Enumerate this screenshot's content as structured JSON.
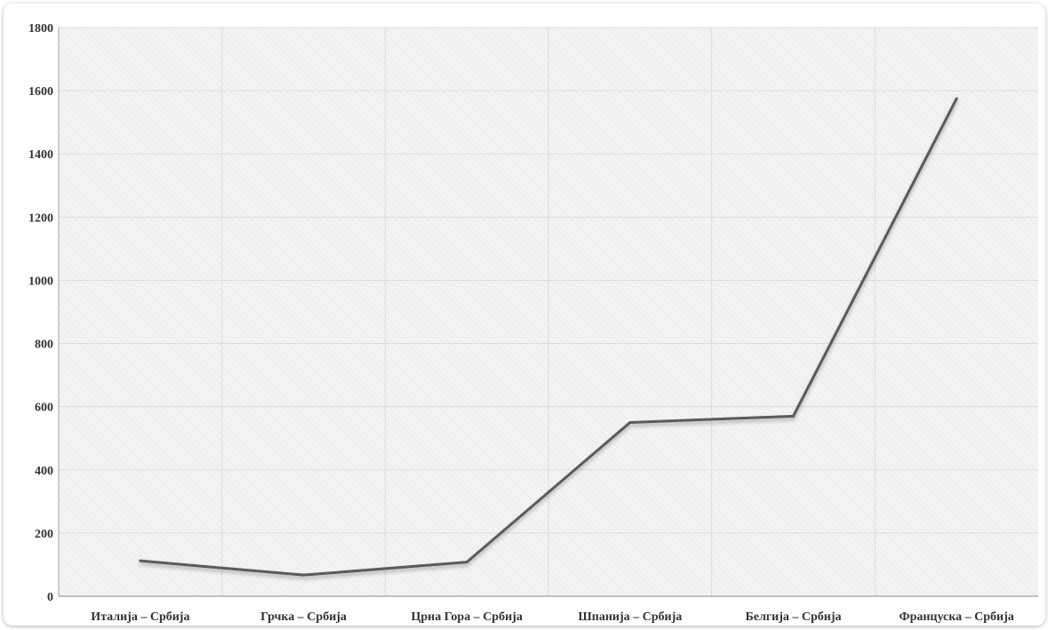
{
  "chart_data": {
    "type": "line",
    "title": "",
    "xlabel": "",
    "ylabel": "",
    "categories": [
      "Италија – Србија",
      "Грчка – Србија",
      "Црна Гора – Србија",
      "Шпанија – Србија",
      "Белгија – Србија",
      "Француска – Србија"
    ],
    "series": [
      {
        "values": [
          112,
          67,
          108,
          550,
          570,
          1575
        ]
      }
    ],
    "ylim": [
      0,
      1800
    ],
    "yticks": [
      "0",
      "200",
      "400",
      "600",
      "800",
      "1000",
      "1200",
      "1400",
      "1600",
      "1800"
    ],
    "grid": true,
    "legend": "none",
    "colors": {
      "line": "#5a5a5a",
      "plot_bg": "#f2f2f2",
      "grid": "#dddddd",
      "axis": "#bfbfbf",
      "text": "#333333"
    }
  }
}
